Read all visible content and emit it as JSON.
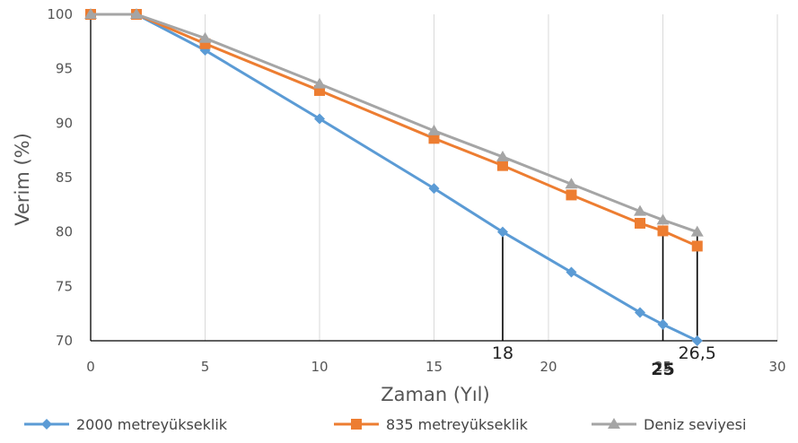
{
  "chart_data": {
    "type": "line",
    "xlabel": "Zaman (Yıl)",
    "ylabel": "Verim (%)",
    "xlim": [
      0,
      30
    ],
    "ylim": [
      70,
      100
    ],
    "x_ticks": [
      "0",
      "5",
      "10",
      "15",
      "20",
      "25",
      "30"
    ],
    "y_ticks": [
      "70",
      "75",
      "80",
      "85",
      "90",
      "95",
      "100"
    ],
    "grid": "vertical",
    "legend_position": "bottom",
    "series": [
      {
        "name": "2000 metreyükseklik",
        "color": "#5b9bd5",
        "marker": "diamond",
        "points": [
          [
            0,
            100
          ],
          [
            2,
            100
          ],
          [
            5,
            96.7
          ],
          [
            10,
            90.4
          ],
          [
            15,
            84
          ],
          [
            18,
            80
          ],
          [
            21,
            76.3
          ],
          [
            24,
            72.6
          ],
          [
            25,
            71.5
          ],
          [
            26.5,
            70
          ]
        ]
      },
      {
        "name": "835 metreyükseklik",
        "color": "#ed7d31",
        "marker": "square",
        "points": [
          [
            0,
            100
          ],
          [
            2,
            100
          ],
          [
            5,
            97.3
          ],
          [
            10,
            93
          ],
          [
            15,
            88.6
          ],
          [
            18,
            86.1
          ],
          [
            21,
            83.4
          ],
          [
            24,
            80.8
          ],
          [
            25,
            80.1
          ],
          [
            26.5,
            78.7
          ]
        ]
      },
      {
        "name": "Deniz seviyesi",
        "color": "#a5a5a5",
        "marker": "triangle",
        "points": [
          [
            0,
            100
          ],
          [
            2,
            100
          ],
          [
            5,
            97.8
          ],
          [
            10,
            93.6
          ],
          [
            15,
            89.3
          ],
          [
            18,
            86.9
          ],
          [
            21,
            84.4
          ],
          [
            24,
            81.9
          ],
          [
            25,
            81.1
          ],
          [
            26.5,
            80
          ]
        ]
      }
    ],
    "annotations": [
      {
        "label": "18",
        "x": 18,
        "y": 80,
        "bold": false
      },
      {
        "label": "25",
        "x": 25,
        "y": 80.1,
        "bold": true
      },
      {
        "label": "26,5",
        "x": 26.5,
        "y": 80,
        "bold": false
      }
    ]
  }
}
